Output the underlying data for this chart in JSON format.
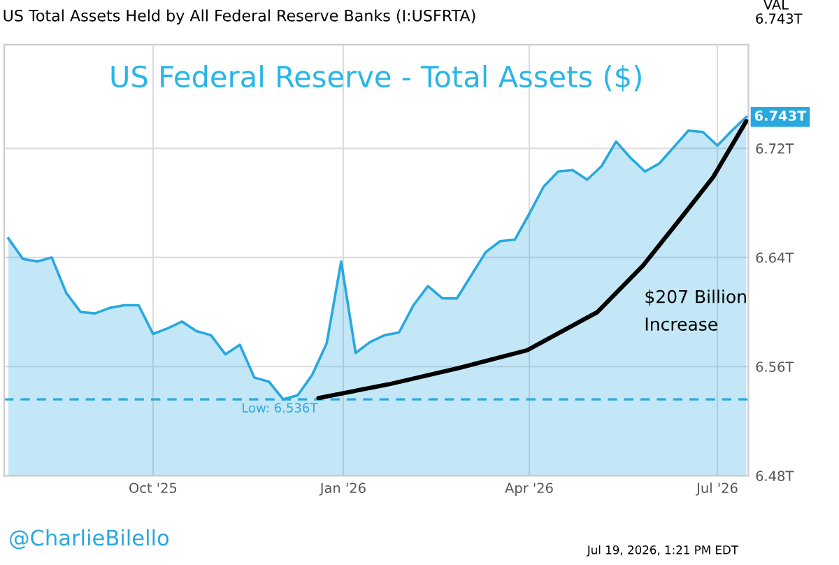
{
  "chart_data": {
    "type": "area",
    "title": "US Federal Reserve - Total Assets ($)",
    "subtitle": "US Total Assets Held by All Federal Reserve Banks (I:USFRTA)",
    "x": [
      "2025-07-23",
      "2025-07-30",
      "2025-08-06",
      "2025-08-13",
      "2025-08-20",
      "2025-08-27",
      "2025-09-03",
      "2025-09-10",
      "2025-09-17",
      "2025-09-24",
      "2025-10-01",
      "2025-10-08",
      "2025-10-15",
      "2025-10-22",
      "2025-10-29",
      "2025-11-05",
      "2025-11-12",
      "2025-11-19",
      "2025-11-26",
      "2025-12-03",
      "2025-12-10",
      "2025-12-17",
      "2025-12-24",
      "2025-12-31",
      "2026-01-07",
      "2026-01-14",
      "2026-01-21",
      "2026-01-28",
      "2026-02-04",
      "2026-02-11",
      "2026-02-18",
      "2026-02-25",
      "2026-03-04",
      "2026-03-11",
      "2026-03-18",
      "2026-03-25",
      "2026-04-01",
      "2026-04-08",
      "2026-04-15",
      "2026-04-22",
      "2026-04-29",
      "2026-05-06",
      "2026-05-13",
      "2026-05-20",
      "2026-05-27",
      "2026-06-03",
      "2026-06-10",
      "2026-06-17",
      "2026-06-24",
      "2026-07-01",
      "2026-07-08",
      "2026-07-15"
    ],
    "series": [
      {
        "color": "#29a8e0",
        "values": [
          6.654,
          6.639,
          6.637,
          6.64,
          6.614,
          6.6,
          6.599,
          6.603,
          6.605,
          6.605,
          6.584,
          6.588,
          6.593,
          6.586,
          6.583,
          6.569,
          6.576,
          6.552,
          6.549,
          6.536,
          6.539,
          6.554,
          6.577,
          6.637,
          6.57,
          6.578,
          6.583,
          6.585,
          6.605,
          6.619,
          6.61,
          6.61,
          6.627,
          6.644,
          6.652,
          6.653,
          6.672,
          6.692,
          6.703,
          6.704,
          6.697,
          6.707,
          6.725,
          6.713,
          6.703,
          6.709,
          6.721,
          6.733,
          6.732,
          6.722,
          6.733,
          6.743
        ],
        "value_labels": [
          null,
          null,
          null,
          null,
          null,
          null,
          null,
          null,
          null,
          null,
          null,
          null,
          null,
          null,
          null,
          null,
          null,
          null,
          null,
          null,
          null,
          null,
          null,
          null,
          null,
          null,
          null,
          null,
          null,
          null,
          null,
          null,
          null,
          null,
          null,
          null,
          null,
          null,
          null,
          null,
          null,
          null,
          null,
          null,
          null,
          null,
          null,
          null,
          null,
          null,
          null,
          "6.743T"
        ]
      },
      {
        "type": "line",
        "color": "#000000",
        "x": [
          "2025-12-20",
          "2026-01-23",
          "2026-02-26",
          "2026-03-31",
          "2026-05-04",
          "2026-05-26",
          "2026-06-15",
          "2026-06-29",
          "2026-07-15"
        ],
        "values": [
          6.537,
          6.547,
          6.559,
          6.572,
          6.6,
          6.634,
          6.672,
          6.699,
          6.74
        ]
      }
    ],
    "xlim": [
      "2025-07-21",
      "2026-07-16"
    ],
    "xticks": [
      {
        "value": "2025-10-01",
        "label": "Oct '25"
      },
      {
        "value": "2026-01-01",
        "label": "Jan '26"
      },
      {
        "value": "2026-04-01",
        "label": "Apr '26"
      },
      {
        "value": "2026-07-01",
        "label": "Jul '26"
      }
    ],
    "ylim": [
      6.48,
      6.796
    ],
    "yticks": [
      {
        "value": 6.48,
        "label": "6.48T"
      },
      {
        "value": 6.56,
        "label": "6.56T"
      },
      {
        "value": 6.64,
        "label": "6.64T"
      },
      {
        "value": 6.72,
        "label": "6.72T"
      }
    ],
    "ref_lines": [
      {
        "axis": "y",
        "value": 6.536,
        "color": "#29a8e0",
        "line_style": "dashed"
      }
    ],
    "annotations": [
      "$207 Billion Increase",
      "Low: 6.536T",
      "VAL",
      "6.743T",
      "@CharlieBilello",
      "Jul 19, 2026, 1:21 PM EDT"
    ],
    "grid": true
  }
}
